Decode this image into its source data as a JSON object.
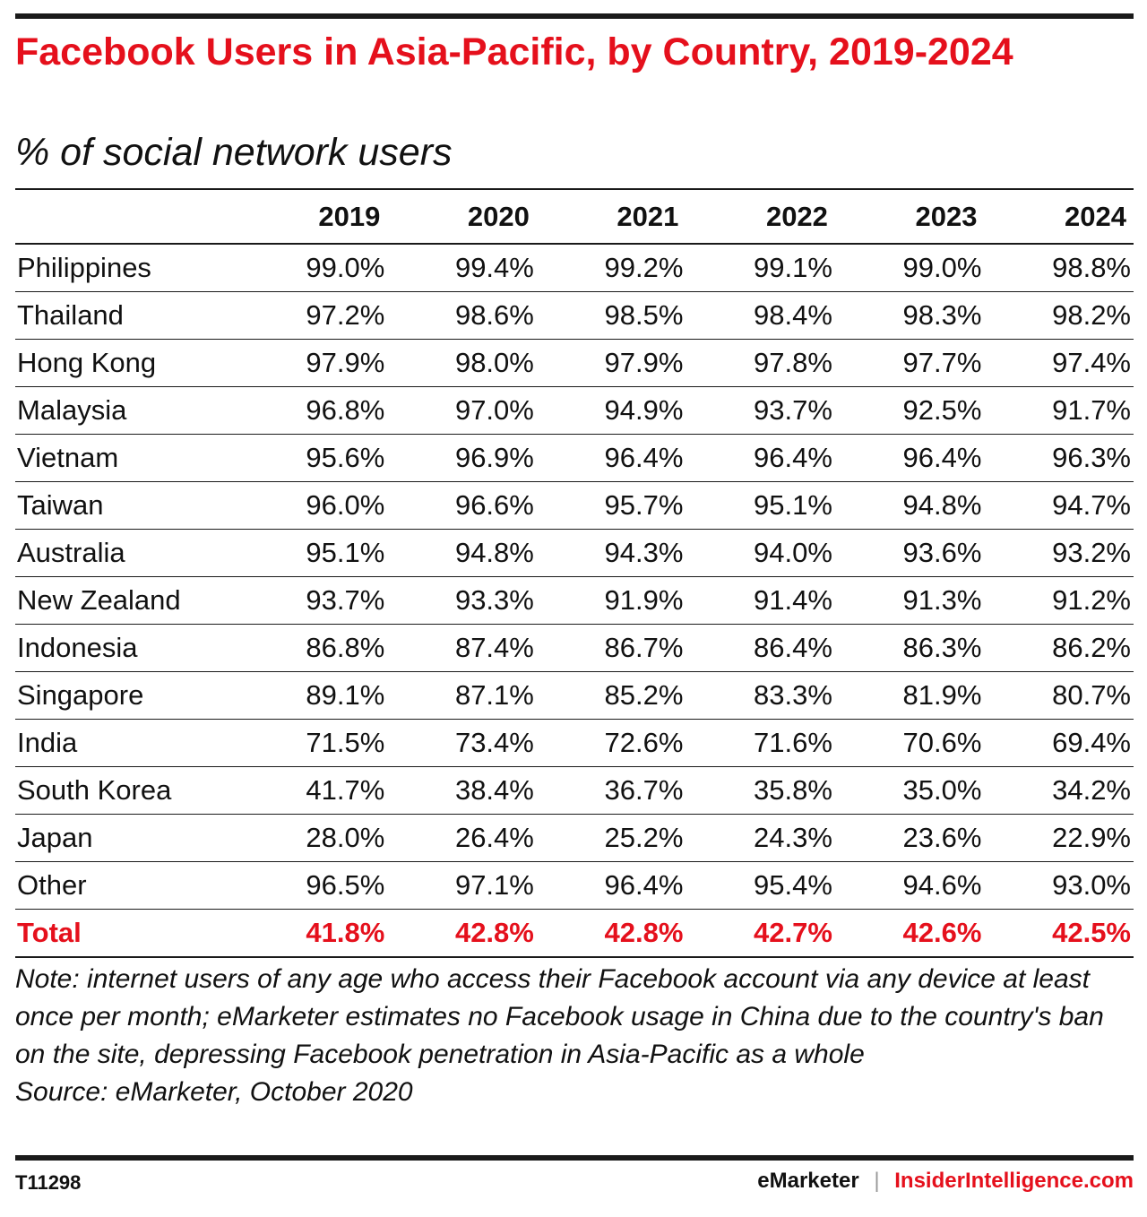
{
  "colors": {
    "accent": "#e5101c",
    "text": "#111111",
    "rule": "#1a1a1a"
  },
  "header": {
    "title": "Facebook Users in Asia-Pacific, by Country, 2019-2024",
    "subtitle": "% of social network users"
  },
  "chart_data": {
    "type": "table",
    "title": "Facebook Users in Asia-Pacific, by Country, 2019-2024",
    "subtitle": "% of social network users",
    "columns": [
      "2019",
      "2020",
      "2021",
      "2022",
      "2023",
      "2024"
    ],
    "rows": [
      {
        "country": "Philippines",
        "values": [
          "99.0%",
          "99.4%",
          "99.2%",
          "99.1%",
          "99.0%",
          "98.8%"
        ]
      },
      {
        "country": "Thailand",
        "values": [
          "97.2%",
          "98.6%",
          "98.5%",
          "98.4%",
          "98.3%",
          "98.2%"
        ]
      },
      {
        "country": "Hong Kong",
        "values": [
          "97.9%",
          "98.0%",
          "97.9%",
          "97.8%",
          "97.7%",
          "97.4%"
        ]
      },
      {
        "country": "Malaysia",
        "values": [
          "96.8%",
          "97.0%",
          "94.9%",
          "93.7%",
          "92.5%",
          "91.7%"
        ]
      },
      {
        "country": "Vietnam",
        "values": [
          "95.6%",
          "96.9%",
          "96.4%",
          "96.4%",
          "96.4%",
          "96.3%"
        ]
      },
      {
        "country": "Taiwan",
        "values": [
          "96.0%",
          "96.6%",
          "95.7%",
          "95.1%",
          "94.8%",
          "94.7%"
        ]
      },
      {
        "country": "Australia",
        "values": [
          "95.1%",
          "94.8%",
          "94.3%",
          "94.0%",
          "93.6%",
          "93.2%"
        ]
      },
      {
        "country": "New Zealand",
        "values": [
          "93.7%",
          "93.3%",
          "91.9%",
          "91.4%",
          "91.3%",
          "91.2%"
        ]
      },
      {
        "country": "Indonesia",
        "values": [
          "86.8%",
          "87.4%",
          "86.7%",
          "86.4%",
          "86.3%",
          "86.2%"
        ]
      },
      {
        "country": "Singapore",
        "values": [
          "89.1%",
          "87.1%",
          "85.2%",
          "83.3%",
          "81.9%",
          "80.7%"
        ]
      },
      {
        "country": "India",
        "values": [
          "71.5%",
          "73.4%",
          "72.6%",
          "71.6%",
          "70.6%",
          "69.4%"
        ]
      },
      {
        "country": "South Korea",
        "values": [
          "41.7%",
          "38.4%",
          "36.7%",
          "35.8%",
          "35.0%",
          "34.2%"
        ]
      },
      {
        "country": "Japan",
        "values": [
          "28.0%",
          "26.4%",
          "25.2%",
          "24.3%",
          "23.6%",
          "22.9%"
        ]
      },
      {
        "country": "Other",
        "values": [
          "96.5%",
          "97.1%",
          "96.4%",
          "95.4%",
          "94.6%",
          "93.0%"
        ]
      },
      {
        "country": "Total",
        "values": [
          "41.8%",
          "42.8%",
          "42.8%",
          "42.7%",
          "42.6%",
          "42.5%"
        ],
        "highlight": true
      }
    ]
  },
  "notes": {
    "note": "Note: internet users of any age who access their Facebook account via any device at least once per month; eMarketer estimates no Facebook usage in China due to the country's ban on the site, depressing Facebook penetration in Asia-Pacific as a whole",
    "source": "Source: eMarketer, October 2020"
  },
  "footer": {
    "chart_id": "T11298",
    "brand": "eMarketer",
    "separator": "|",
    "site": "InsiderIntelligence.com"
  }
}
